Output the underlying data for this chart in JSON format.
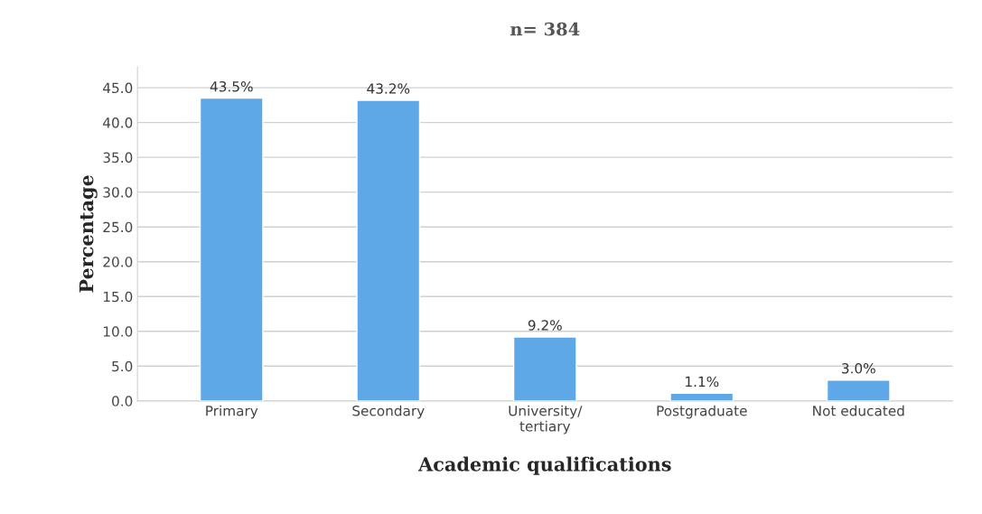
{
  "chart_data": {
    "type": "bar",
    "title": "n= 384",
    "xlabel": "Academic qualifications",
    "ylabel": "Percentage",
    "categories": [
      "Primary",
      "Secondary",
      "University/\ntertiary",
      "Postgraduate",
      "Not educated"
    ],
    "values": [
      43.5,
      43.2,
      9.2,
      1.1,
      3.0
    ],
    "value_labels": [
      "43.5%",
      "43.2%",
      "9.2%",
      "1.1%",
      "3.0%"
    ],
    "color": "#5fa8e8",
    "ylim": [
      0,
      48
    ],
    "yticks": [
      {
        "value": 0,
        "label": "0.0"
      },
      {
        "value": 5,
        "label": "5.0"
      },
      {
        "value": 10,
        "label": "10.0"
      },
      {
        "value": 15,
        "label": "15.0"
      },
      {
        "value": 20,
        "label": "20.0"
      },
      {
        "value": 25,
        "label": "25.0"
      },
      {
        "value": 30,
        "label": "30.0"
      },
      {
        "value": 35,
        "label": "35.0"
      },
      {
        "value": 40,
        "label": "40.0"
      },
      {
        "value": 45,
        "label": "45.0"
      }
    ],
    "grid": "y",
    "legend": false
  }
}
